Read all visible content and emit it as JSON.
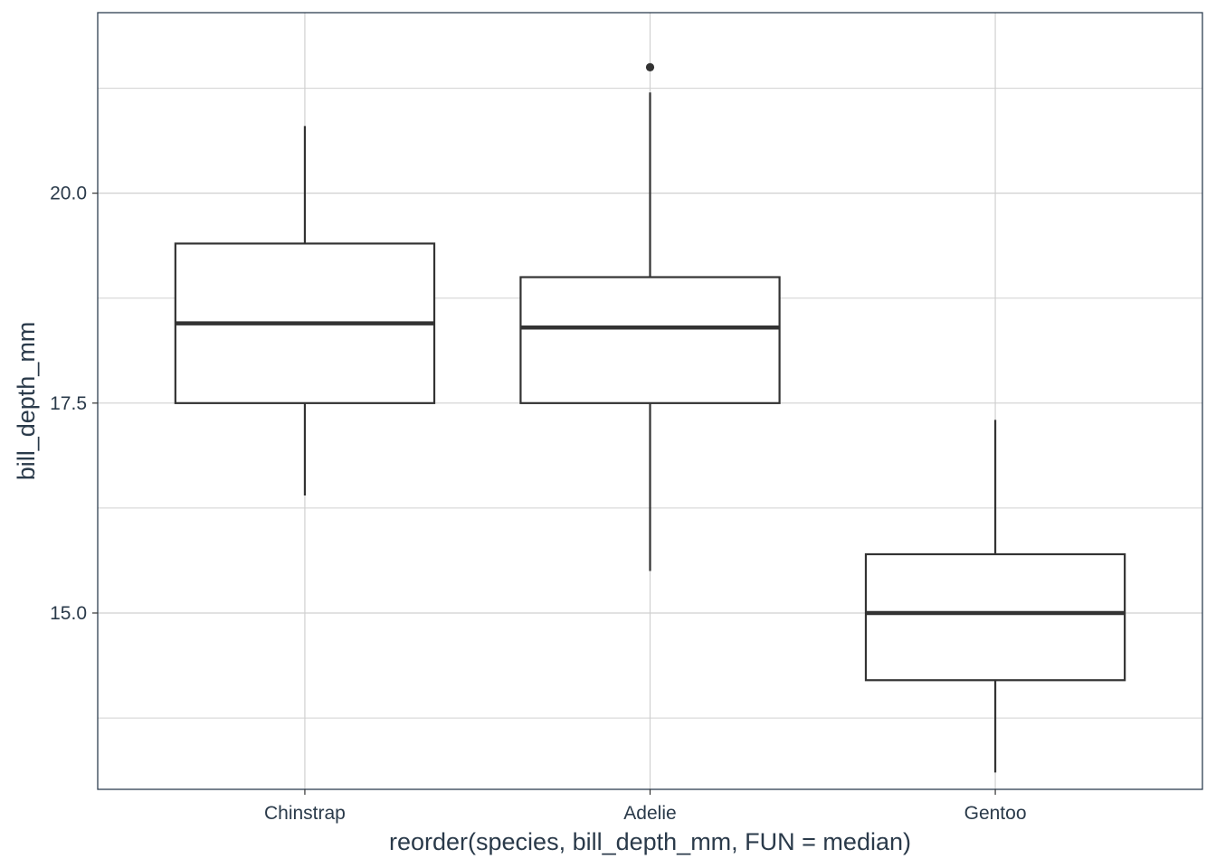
{
  "chart_data": {
    "type": "boxplot",
    "xlabel": "reorder(species, bill_depth_mm, FUN = median)",
    "ylabel": "bill_depth_mm",
    "ylim": [
      12.9,
      22.15
    ],
    "y_ticks": [
      15.0,
      17.5,
      20.0
    ],
    "y_tick_labels": [
      "15.0",
      "17.5",
      "20.0"
    ],
    "y_minor_ticks": [
      13.75,
      16.25,
      18.75,
      21.25
    ],
    "grid": true,
    "categories": [
      "Chinstrap",
      "Adelie",
      "Gentoo"
    ],
    "boxes": [
      {
        "category": "Chinstrap",
        "min": 16.4,
        "q1": 17.5,
        "median": 18.45,
        "q3": 19.4,
        "max": 20.8,
        "outliers": []
      },
      {
        "category": "Adelie",
        "min": 15.5,
        "q1": 17.5,
        "median": 18.4,
        "q3": 19.0,
        "max": 21.2,
        "outliers": [
          21.5
        ]
      },
      {
        "category": "Gentoo",
        "min": 13.1,
        "q1": 14.2,
        "median": 15.0,
        "q3": 15.7,
        "max": 17.3,
        "outliers": []
      }
    ]
  }
}
